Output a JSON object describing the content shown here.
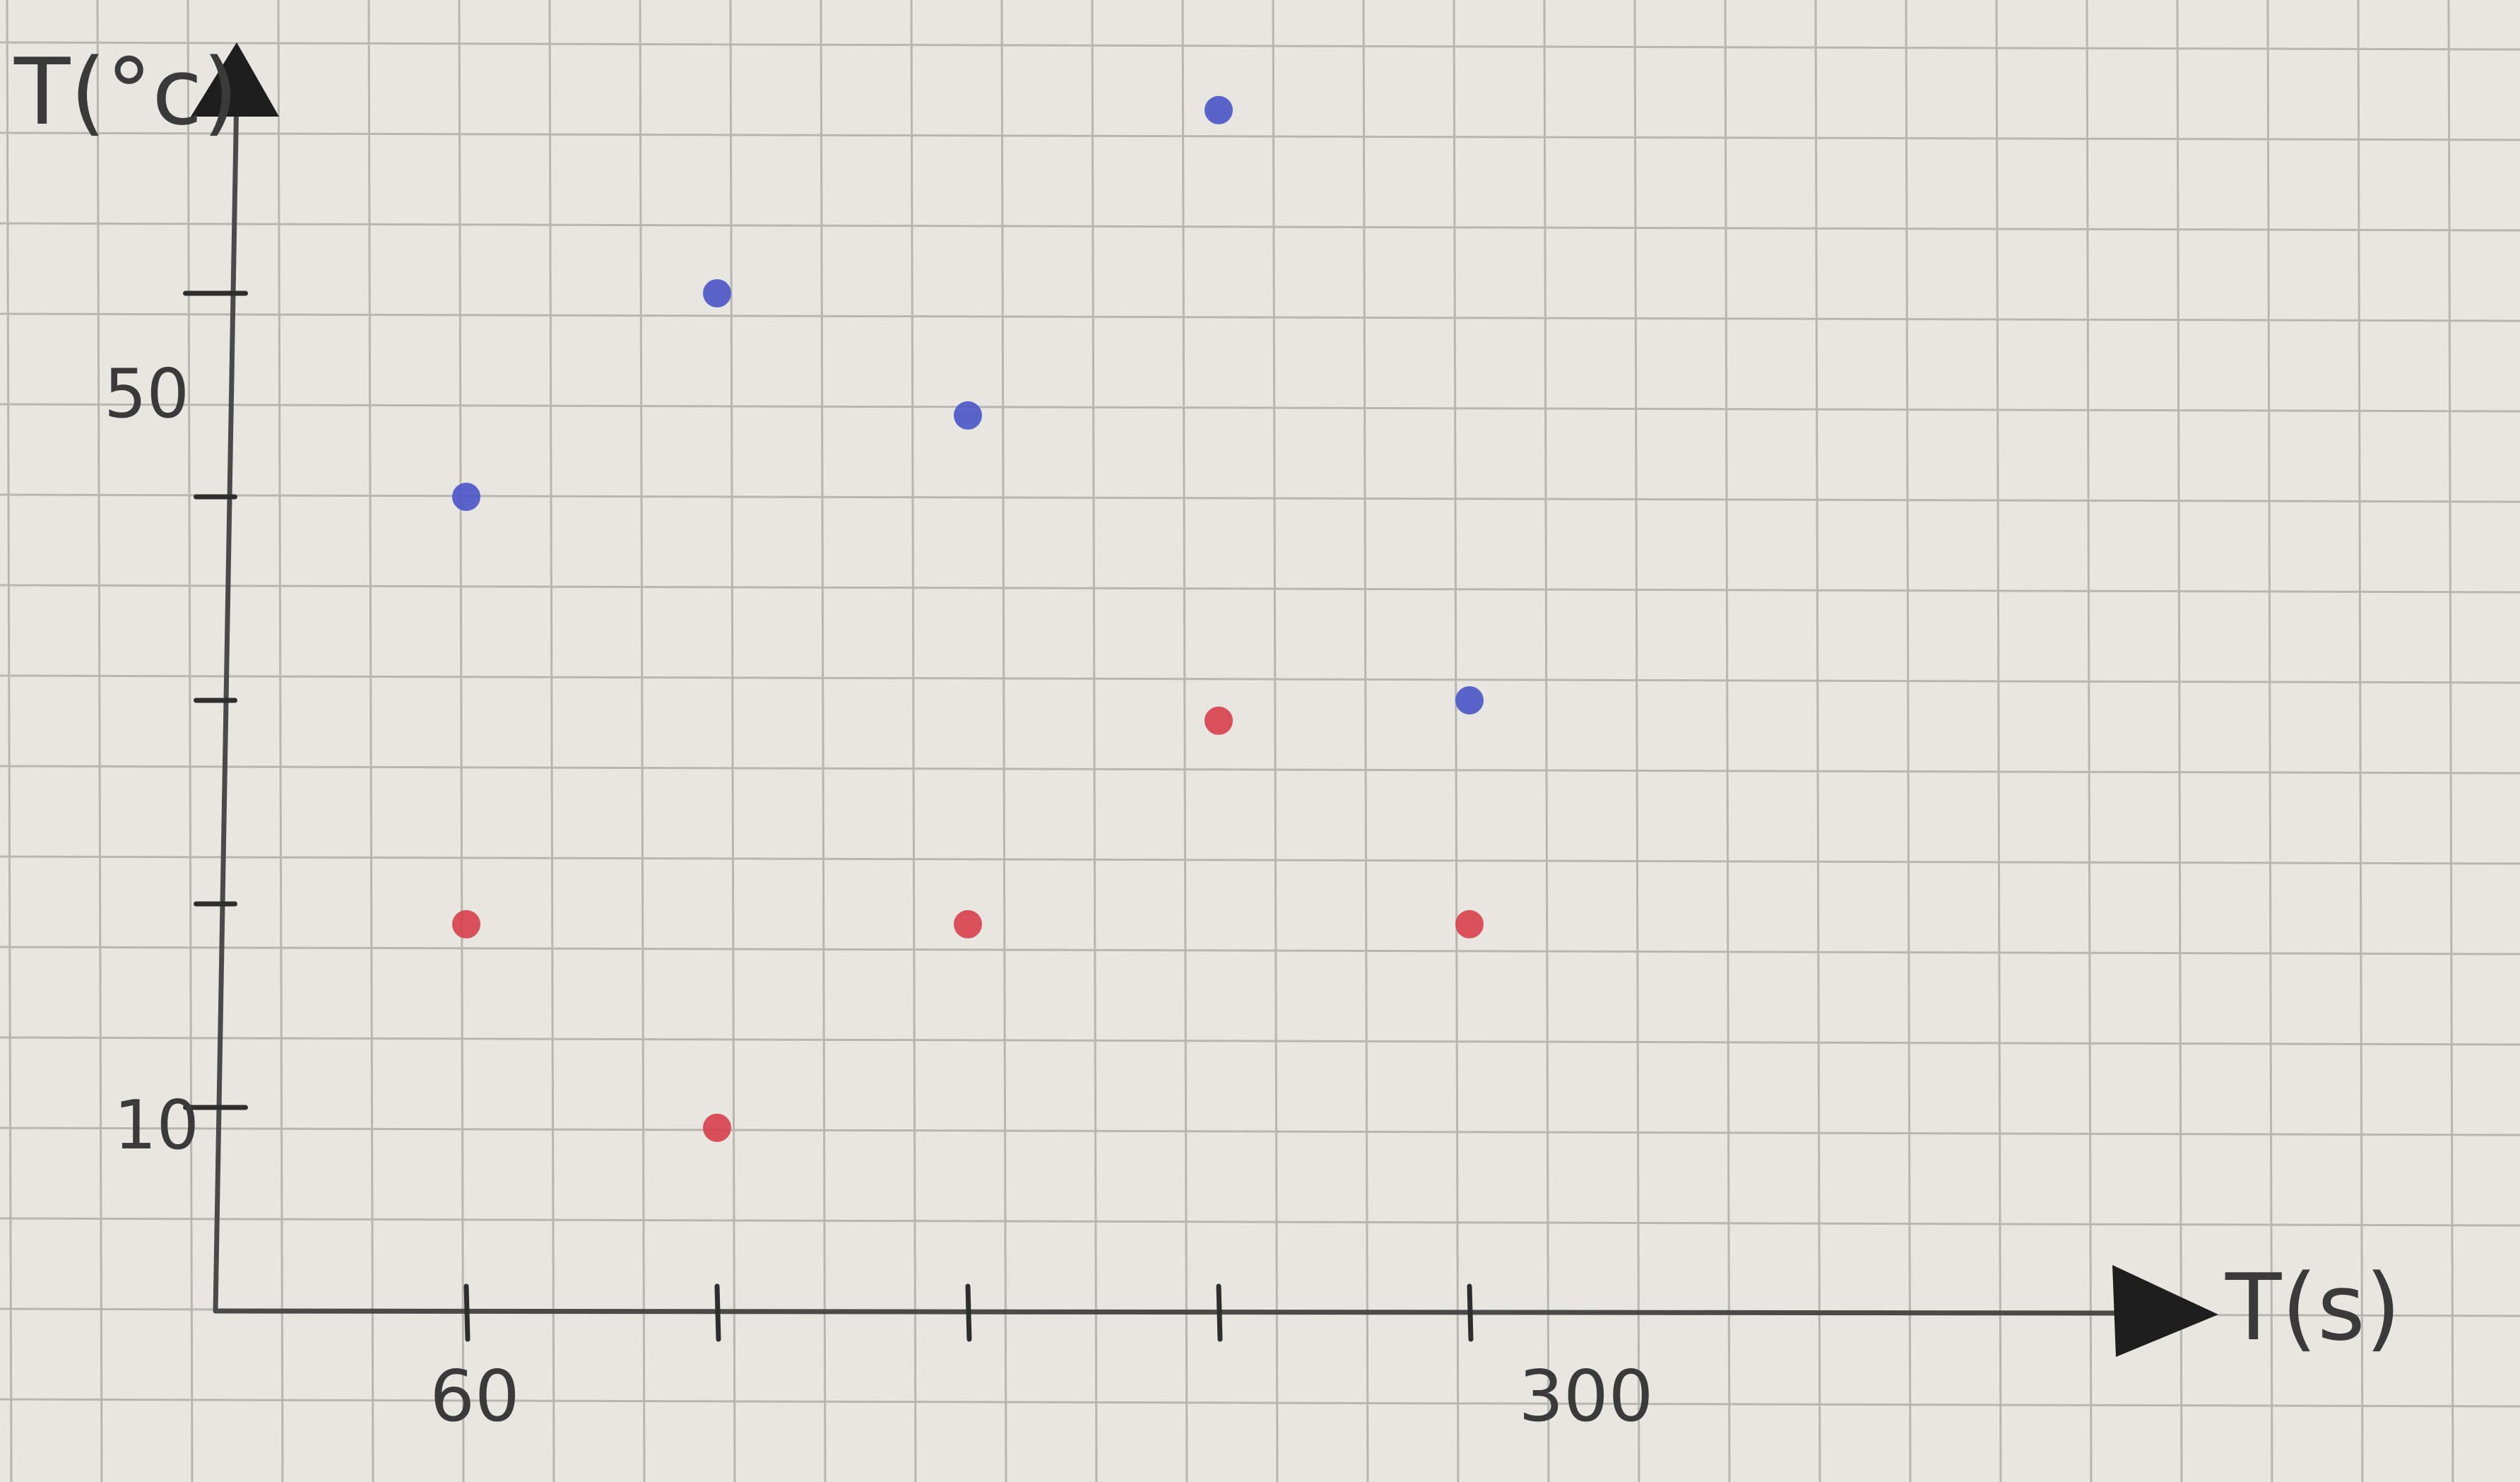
{
  "chart_data": {
    "type": "scatter",
    "title": "",
    "xlabel": "T(s)",
    "ylabel": "T(°c)",
    "x_tick_labels": [
      "60",
      "300"
    ],
    "y_tick_labels": [
      "10",
      "50"
    ],
    "x_ticks": [
      60,
      120,
      180,
      240,
      300
    ],
    "y_ticks": [
      10,
      20,
      30,
      40,
      50
    ],
    "xlim": [
      0,
      420
    ],
    "ylim": [
      0,
      60
    ],
    "grid": true,
    "legend": "none",
    "series": [
      {
        "color": "#4a56c8",
        "points": [
          {
            "x": 60,
            "y": 40
          },
          {
            "x": 120,
            "y": 50
          },
          {
            "x": 180,
            "y": 44
          },
          {
            "x": 240,
            "y": 59
          },
          {
            "x": 300,
            "y": 30
          }
        ]
      },
      {
        "color": "#d8404c",
        "points": [
          {
            "x": 60,
            "y": 19
          },
          {
            "x": 120,
            "y": 9
          },
          {
            "x": 180,
            "y": 19
          },
          {
            "x": 240,
            "y": 29
          },
          {
            "x": 300,
            "y": 19
          }
        ]
      }
    ]
  },
  "colors": {
    "paper": "#e8e6e1",
    "grid": "#b7b6b1",
    "axis": "#4a4a4a"
  }
}
